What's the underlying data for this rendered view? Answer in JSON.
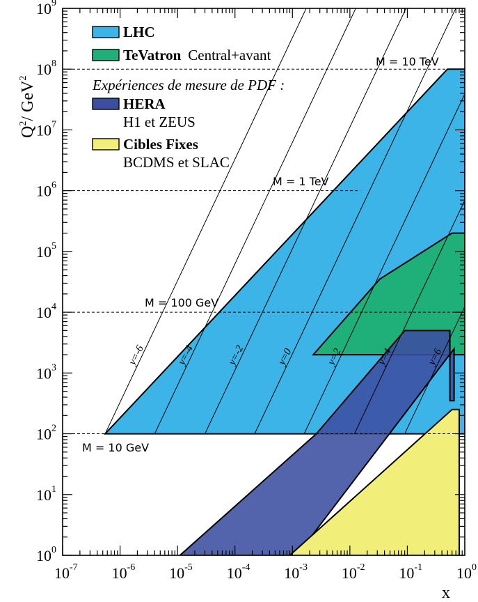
{
  "chart_data": {
    "type": "area",
    "x_scale": "log",
    "y_scale": "log",
    "xlim": [
      1e-07,
      1
    ],
    "ylim": [
      1,
      1000000000.0
    ],
    "xlabel": "x",
    "ylabel_main": "Q",
    "ylabel_sup": "2",
    "ylabel_rest": "/ GeV",
    "ylabel_rest_sup": "2",
    "x_ticks": [
      {
        "value": 1e-07,
        "base": "10",
        "exp": "-7"
      },
      {
        "value": 1e-06,
        "base": "10",
        "exp": "-6"
      },
      {
        "value": 1e-05,
        "base": "10",
        "exp": "-5"
      },
      {
        "value": 0.0001,
        "base": "10",
        "exp": "-4"
      },
      {
        "value": 0.001,
        "base": "10",
        "exp": "-3"
      },
      {
        "value": 0.01,
        "base": "10",
        "exp": "-2"
      },
      {
        "value": 0.1,
        "base": "10",
        "exp": "-1"
      },
      {
        "value": 1,
        "base": "10",
        "exp": "0"
      }
    ],
    "y_ticks": [
      {
        "value": 1,
        "base": "10",
        "exp": "0"
      },
      {
        "value": 10,
        "base": "10",
        "exp": "1"
      },
      {
        "value": 100,
        "base": "10",
        "exp": "2"
      },
      {
        "value": 1000,
        "base": "10",
        "exp": "3"
      },
      {
        "value": 10000,
        "base": "10",
        "exp": "4"
      },
      {
        "value": 100000,
        "base": "10",
        "exp": "5"
      },
      {
        "value": 1000000,
        "base": "10",
        "exp": "6"
      },
      {
        "value": 10000000,
        "base": "10",
        "exp": "7"
      },
      {
        "value": 100000000,
        "base": "10",
        "exp": "8"
      },
      {
        "value": 1000000000,
        "base": "10",
        "exp": "9"
      }
    ],
    "regions": [
      {
        "name": "LHC",
        "color": "#3db4e8",
        "points": [
          [
            5.5e-07,
            100
          ],
          [
            0.5,
            100000000.0
          ],
          [
            1,
            100000000.0
          ],
          [
            1,
            100
          ]
        ]
      },
      {
        "name": "TeVatron",
        "color": "#1faf78",
        "points": [
          [
            0.0023,
            2000
          ],
          [
            0.033,
            35000
          ],
          [
            0.6,
            200000
          ],
          [
            1,
            200000
          ],
          [
            1,
            2000
          ]
        ]
      },
      {
        "name": "HERA",
        "color": "#3c4ea0",
        "points": [
          [
            1.1e-05,
            1
          ],
          [
            0.0012,
            1
          ],
          [
            0.65,
            2500
          ],
          [
            0.65,
            350
          ],
          [
            0.55,
            350
          ],
          [
            0.55,
            5000
          ],
          [
            0.09,
            5000
          ],
          [
            0.0026,
            100
          ]
        ]
      },
      {
        "name": "Cibles Fixes",
        "color": "#f2ee7a",
        "points": [
          [
            0.0009,
            1
          ],
          [
            0.8,
            1
          ],
          [
            0.8,
            250
          ],
          [
            0.6,
            250
          ]
        ]
      }
    ],
    "mass_lines": [
      {
        "label": "M = 10 TeV",
        "q2": 100000000.0,
        "x_start": 1e-07,
        "x_end": 1
      },
      {
        "label": "M = 1 TeV",
        "q2": 1000000.0,
        "x_start": 1e-07,
        "x_end": 0.015
      },
      {
        "label": "M = 100 GeV",
        "q2": 10000,
        "x_start": 1e-07,
        "x_end": 1
      },
      {
        "label": "M = 10 GeV",
        "q2": 100,
        "x_start": 1e-07,
        "x_end": 1
      }
    ],
    "rapidity_lines": [
      {
        "label": "y=-6",
        "x0": 5.5e-07,
        "q2": 100
      },
      {
        "label": "y=-4",
        "x0": 4e-06,
        "q2": 100
      },
      {
        "label": "y=-2",
        "x0": 3e-05,
        "q2": 100
      },
      {
        "label": "y=0",
        "x0": 0.00022,
        "q2": 100
      },
      {
        "label": "y=2",
        "x0": 0.0016,
        "q2": 100
      },
      {
        "label": "y=4",
        "x0": 0.012,
        "q2": 100
      },
      {
        "label": "y=6",
        "x0": 0.09,
        "q2": 100
      }
    ],
    "legend": {
      "placement": "top-left",
      "entries": [
        {
          "name": "LHC",
          "color": "#3db4e8",
          "note": ""
        },
        {
          "name": "TeVatron",
          "color": "#1faf78",
          "note": "Central+avant"
        },
        {
          "name": "HERA",
          "color": "#3c4ea0",
          "note": "H1 et ZEUS"
        },
        {
          "name": "Cibles Fixes",
          "color": "#f2ee7a",
          "note": "BCDMS et SLAC"
        }
      ],
      "section_title": "Expériences de mesure de PDF :"
    }
  }
}
